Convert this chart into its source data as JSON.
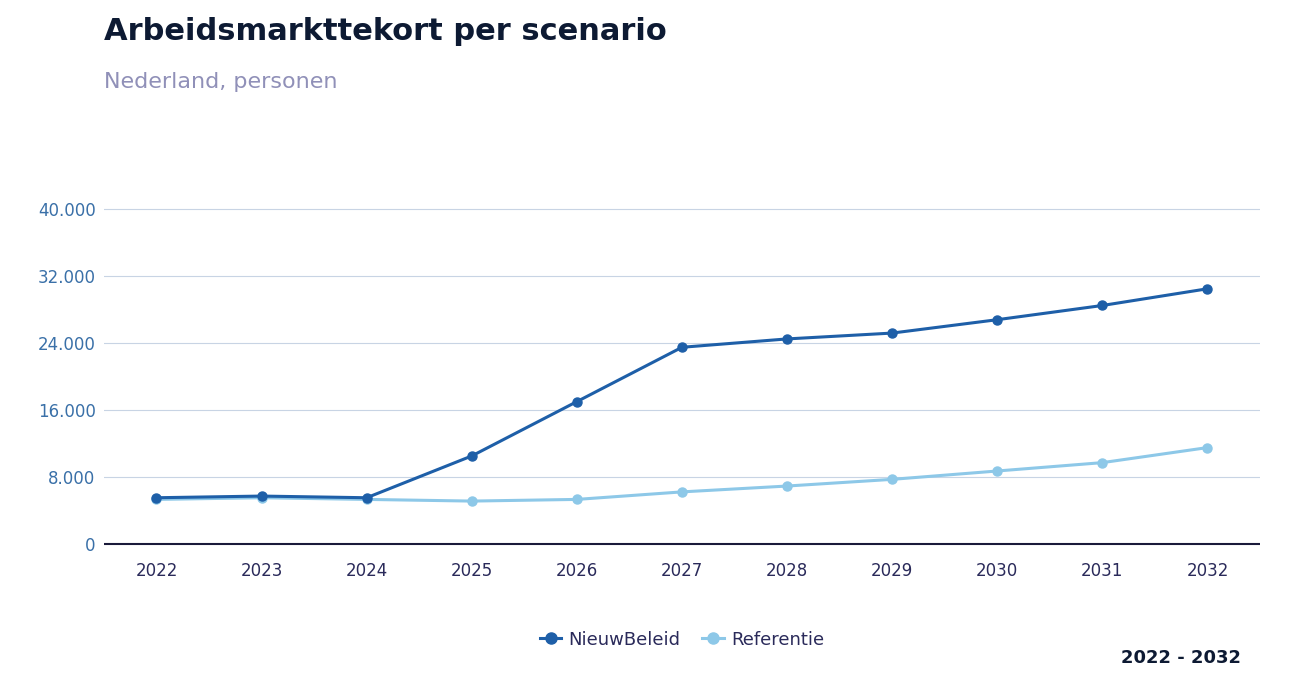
{
  "title": "Arbeidsmarkttekort per scenario",
  "subtitle": "Nederland, personen",
  "footer": "2022 - 2032",
  "years": [
    2022,
    2023,
    2024,
    2025,
    2026,
    2027,
    2028,
    2029,
    2030,
    2031,
    2032
  ],
  "nieuw_beleid": [
    5500,
    5700,
    5500,
    10500,
    17000,
    23500,
    24500,
    25200,
    26800,
    28500,
    30500
  ],
  "referentie": [
    5300,
    5500,
    5300,
    5100,
    5300,
    6200,
    6900,
    7700,
    8700,
    9700,
    11500
  ],
  "nieuw_beleid_color": "#1e5fa8",
  "referentie_color": "#8dc8e8",
  "title_color": "#0d1a33",
  "subtitle_color": "#9090b8",
  "ytick_color": "#3a70a8",
  "xtick_color": "#2a2a5a",
  "yticks": [
    0,
    8000,
    16000,
    24000,
    32000,
    40000
  ],
  "ylim": [
    -800,
    42000
  ],
  "background_color": "#ffffff",
  "grid_color": "#c8d4e4",
  "legend_label_nieuw": "NieuwBeleid",
  "legend_label_ref": "Referentie",
  "title_fontsize": 22,
  "subtitle_fontsize": 16,
  "footer_fontsize": 13,
  "tick_fontsize": 12,
  "legend_fontsize": 13
}
